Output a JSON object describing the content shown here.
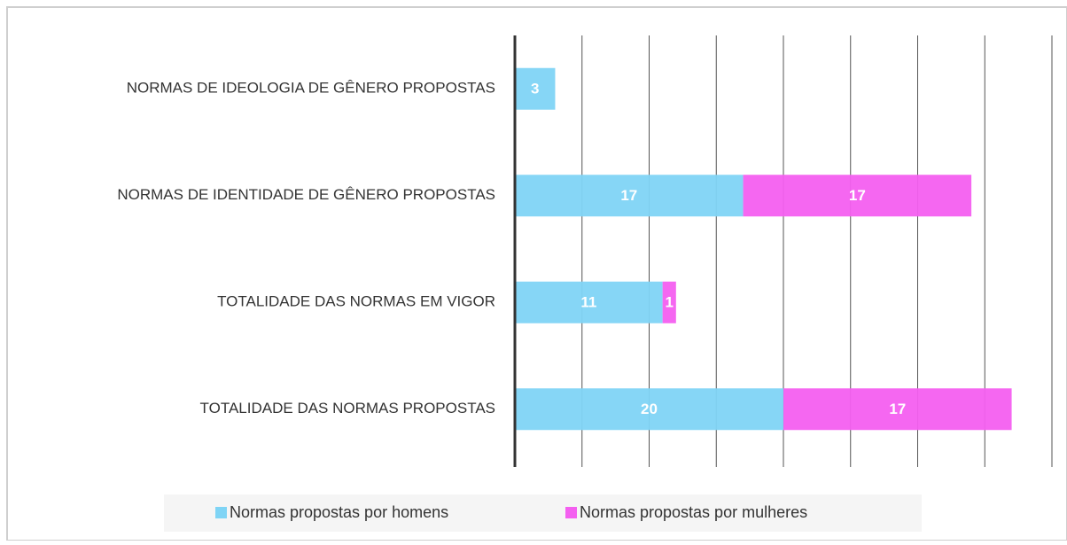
{
  "chart_data": {
    "type": "stacked-bar-horizontal",
    "categories": [
      "NORMAS DE IDEOLOGIA DE GÊNERO PROPOSTAS",
      "NORMAS DE IDENTIDADE DE GÊNERO PROPOSTAS",
      "TOTALIDADE DAS NORMAS EM VIGOR",
      "TOTALIDADE DAS NORMAS PROPOSTAS"
    ],
    "series": [
      {
        "name": "Normas propostas por homens",
        "color": "#7fd4f5",
        "values": [
          3,
          17,
          11,
          20
        ]
      },
      {
        "name": "Normas propostas por mulheres",
        "color": "#f45ff0",
        "values": [
          null,
          17,
          1,
          17
        ]
      }
    ],
    "xlim": [
      0,
      40
    ],
    "xticks": [
      0,
      5,
      10,
      15,
      20,
      25,
      30,
      35,
      40
    ],
    "grid": true,
    "legend": "bottom"
  }
}
